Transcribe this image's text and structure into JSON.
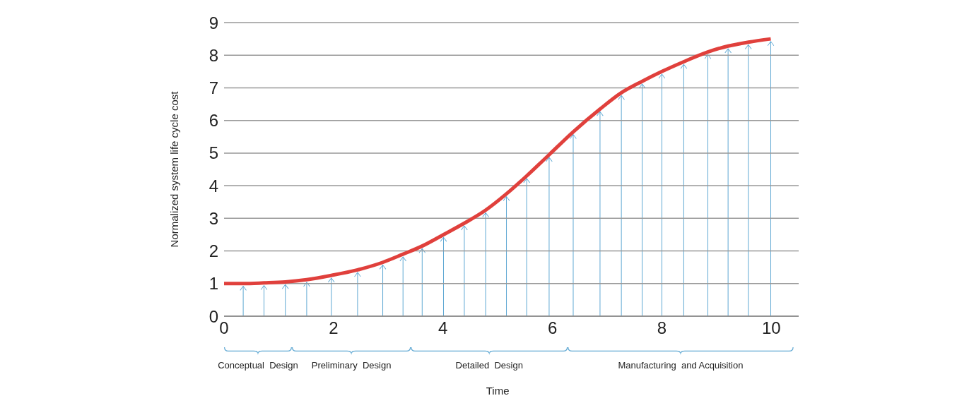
{
  "chart_data": {
    "type": "line",
    "xlabel": "Time",
    "ylabel": "Normalized system life cycle cost",
    "x": [
      0,
      0.35,
      0.73,
      1.12,
      1.51,
      1.96,
      2.44,
      2.9,
      3.27,
      3.62,
      4.01,
      4.39,
      4.78,
      5.16,
      5.53,
      5.94,
      6.38,
      6.87,
      7.26,
      7.64,
      8.0,
      8.4,
      8.84,
      9.21,
      9.58,
      9.99
    ],
    "series": [
      {
        "color": "#e0403c",
        "values": [
          1.0,
          1.0,
          1.02,
          1.05,
          1.12,
          1.25,
          1.42,
          1.65,
          1.9,
          2.15,
          2.5,
          2.85,
          3.25,
          3.75,
          4.3,
          4.95,
          5.65,
          6.35,
          6.85,
          7.2,
          7.5,
          7.8,
          8.1,
          8.28,
          8.4,
          8.5
        ]
      }
    ],
    "xlim": [
      0,
      10.5
    ],
    "xticks": [
      0,
      2,
      4,
      6,
      8,
      10
    ],
    "ylim": [
      0,
      9
    ],
    "yticks": [
      0,
      1,
      2,
      3,
      4,
      5,
      6,
      7,
      8,
      9
    ],
    "grid": "y",
    "marker": "none",
    "line_style": "solid",
    "annotations": [
      "Conceptual  Design",
      "Preliminary  Design",
      "Detailed  Design",
      "Manufacturing  and Acquisition"
    ]
  }
}
